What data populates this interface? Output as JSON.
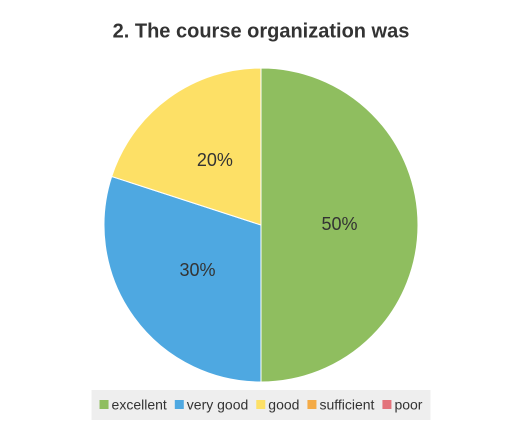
{
  "chart_data": {
    "type": "pie",
    "title": "2. The course organization was",
    "categories": [
      "excellent",
      "very good",
      "good",
      "sufficient",
      "poor"
    ],
    "values": [
      50,
      30,
      20,
      0,
      0
    ],
    "value_labels": [
      "50%",
      "30%",
      "20%",
      null,
      null
    ],
    "colors": [
      "#8fbe5f",
      "#4ea8e1",
      "#fde066",
      "#f4ab47",
      "#e3737b"
    ],
    "legend": "bottom"
  }
}
